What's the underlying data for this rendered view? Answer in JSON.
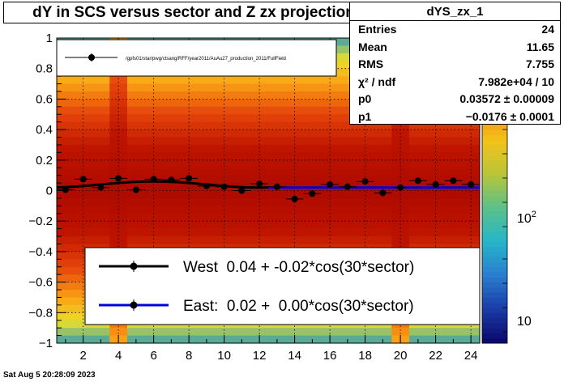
{
  "chart_data": {
    "type": "scatter",
    "title": "dY in SCS versus sector and Z zx projection",
    "xlim": [
      0.5,
      24.5
    ],
    "ylim": [
      -1,
      1
    ],
    "x_ticks": [
      2,
      4,
      6,
      8,
      10,
      12,
      14,
      16,
      18,
      20,
      22,
      24
    ],
    "y_ticks": [
      -1,
      -0.8,
      -0.6,
      -0.4,
      -0.2,
      0,
      0.2,
      0.4,
      0.6,
      0.8,
      1
    ],
    "x_tick_labels": [
      "2",
      "4",
      "6",
      "8",
      "10",
      "12",
      "14",
      "16",
      "18",
      "20",
      "22",
      "24"
    ],
    "y_tick_labels": [
      "−1",
      "−0.8",
      "−0.6",
      "−0.4",
      "−0.2",
      "0",
      "0.2",
      "0.4",
      "0.6",
      "0.8",
      "1"
    ],
    "grid": true,
    "colorbar": {
      "log": true,
      "labels": [
        {
          "text": "10",
          "sup": ""
        },
        {
          "text": "10",
          "sup": "2"
        }
      ]
    },
    "points": {
      "x": [
        1,
        2,
        3,
        4,
        5,
        6,
        7,
        8,
        9,
        10,
        11,
        12,
        13,
        14,
        15,
        16,
        17,
        18,
        19,
        20,
        21,
        22,
        23,
        24
      ],
      "y": [
        0.005,
        0.075,
        0.02,
        0.08,
        0.005,
        0.075,
        0.07,
        0.08,
        0.03,
        0.025,
        0.0,
        0.045,
        0.025,
        -0.055,
        -0.02,
        0.04,
        0.025,
        0.06,
        -0.015,
        0.02,
        0.065,
        0.04,
        0.065,
        0.04
      ],
      "yerr": 0.01
    },
    "fits": [
      {
        "name": "West",
        "color": "#000000",
        "x_range": [
          0.5,
          12.5
        ],
        "p0": 0.04,
        "p1": -0.02
      },
      {
        "name": "East",
        "color": "#0000dd",
        "x_range": [
          12.5,
          24.5
        ],
        "p0": 0.02,
        "p1": 0.0
      }
    ],
    "legend_top": {
      "entry": "/gpfs01/star/pwg/ctsang/RFF/year2011/AuAu27_production_2011/FullField"
    },
    "legend_bottom": [
      {
        "label": "West  0.04 + -0.02*cos(30*sector)",
        "color": "#000000"
      },
      {
        "label": "East:  0.02 +  0.00*cos(30*sector)",
        "color": "#0000dd"
      }
    ]
  },
  "stats": {
    "name": "dYS_zx_1",
    "rows": [
      {
        "k": "Entries",
        "v": "24"
      },
      {
        "k": "Mean",
        "v": "11.65"
      },
      {
        "k": "RMS",
        "v": "7.755"
      },
      {
        "k": "χ² / ndf",
        "v": "7.982e+04 / 10"
      },
      {
        "k": "p0",
        "v": "0.03572 ± 0.00009"
      },
      {
        "k": "p1",
        "v": "−0.0176 ± 0.0001"
      }
    ]
  },
  "footer": "Sat Aug  5 20:28:09 2023"
}
